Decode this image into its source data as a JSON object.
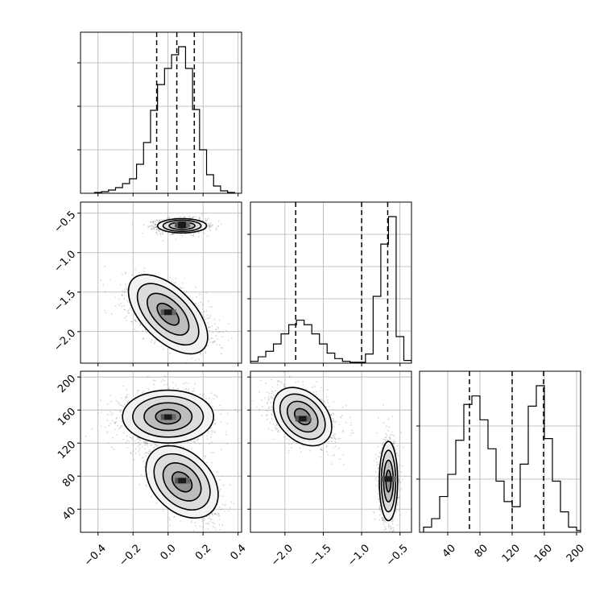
{
  "chart_data": [
    {
      "name": "hist-p0",
      "type": "histogram",
      "param_index": 0,
      "xlim": [
        -0.5,
        0.42
      ],
      "grid": true,
      "quantiles": [
        -0.065,
        0.05,
        0.15
      ],
      "bins": [
        -0.4,
        -0.36,
        -0.32,
        -0.28,
        -0.24,
        -0.2,
        -0.16,
        -0.12,
        -0.08,
        -0.04,
        0.0,
        0.04,
        0.08,
        0.12,
        0.16,
        0.2,
        0.24,
        0.28,
        0.32,
        0.36
      ],
      "counts": [
        1,
        2,
        4,
        7,
        12,
        18,
        36,
        63,
        103,
        135,
        155,
        172,
        182,
        155,
        104,
        54,
        23,
        9,
        3,
        1
      ],
      "y_ticks": [
        0.27,
        0.54,
        0.81
      ]
    },
    {
      "name": "hist-p1",
      "type": "histogram",
      "param_index": 1,
      "xlim": [
        -2.45,
        -0.35
      ],
      "grid": true,
      "quantiles": [
        -1.86,
        -1.0,
        -0.66
      ],
      "bins": [
        -2.4,
        -2.3,
        -2.2,
        -2.1,
        -2.0,
        -1.9,
        -1.8,
        -1.7,
        -1.6,
        -1.5,
        -1.4,
        -1.3,
        -1.2,
        -1.1,
        -1.0,
        -0.9,
        -0.8,
        -0.7,
        -0.6,
        -0.5,
        -0.4
      ],
      "counts": [
        2,
        7,
        13,
        21,
        32,
        42,
        47,
        42,
        32,
        21,
        11,
        5,
        2,
        1,
        1,
        10,
        73,
        130,
        160,
        29,
        3
      ],
      "y_ticks": [
        0.2,
        0.4,
        0.6,
        0.8
      ]
    },
    {
      "name": "hist-p2",
      "type": "histogram",
      "param_index": 2,
      "xlim": [
        5,
        205
      ],
      "grid": true,
      "quantiles": [
        67,
        120,
        159
      ],
      "bins": [
        15,
        25,
        35,
        45,
        55,
        65,
        75,
        85,
        95,
        105,
        115,
        125,
        135,
        145,
        155,
        165,
        175,
        185,
        195,
        205
      ],
      "counts": [
        3,
        8,
        21,
        34,
        54,
        75,
        80,
        66,
        49,
        30,
        18,
        15,
        40,
        74,
        86,
        55,
        30,
        12,
        3,
        1
      ],
      "y_ticks": [
        0.33,
        0.66
      ]
    },
    {
      "name": "scatter-p0-p1",
      "type": "scatter-contour",
      "x_param": 0,
      "y_param": 1,
      "xlim": [
        -0.5,
        0.42
      ],
      "ylim": [
        -2.4,
        -0.36
      ],
      "clusters": [
        {
          "mx": 0.08,
          "my": -0.66,
          "sx": 0.07,
          "sy": 0.045,
          "rho": 0.0,
          "n": 1500,
          "peak": [
            0.08,
            -0.64
          ]
        },
        {
          "mx": 0.0,
          "my": -1.78,
          "sx": 0.12,
          "sy": 0.2,
          "rho": -0.55,
          "n": 1500,
          "peak": [
            0.0,
            -1.75
          ]
        }
      ]
    },
    {
      "name": "scatter-p0-p2",
      "type": "scatter-contour",
      "x_param": 0,
      "y_param": 2,
      "xlim": [
        -0.5,
        0.42
      ],
      "ylim": [
        12,
        207
      ],
      "clusters": [
        {
          "mx": 0.0,
          "my": 152,
          "sx": 0.13,
          "sy": 16,
          "rho": 0.0,
          "n": 1500,
          "peak": [
            0.0,
            152
          ]
        },
        {
          "mx": 0.08,
          "my": 73,
          "sx": 0.1,
          "sy": 22,
          "rho": -0.6,
          "n": 1500,
          "peak": [
            0.08,
            75
          ]
        }
      ]
    },
    {
      "name": "scatter-p1-p2",
      "type": "scatter-contour",
      "x_param": 1,
      "y_param": 2,
      "xlim": [
        -2.45,
        -0.35
      ],
      "ylim": [
        12,
        207
      ],
      "clusters": [
        {
          "mx": -1.77,
          "my": 152,
          "sx": 0.2,
          "sy": 16,
          "rho": -0.35,
          "n": 1500,
          "peak": [
            -1.77,
            150
          ]
        },
        {
          "mx": -0.65,
          "my": 74,
          "sx": 0.06,
          "sy": 24,
          "rho": 0.0,
          "n": 1500,
          "peak": [
            -0.65,
            77
          ]
        }
      ]
    }
  ],
  "axes": {
    "p0": {
      "ticks": [
        -0.4,
        -0.2,
        0.0,
        0.2,
        0.4
      ],
      "labels": [
        "−0.4",
        "−0.2",
        "0.0",
        "0.2",
        "0.4"
      ]
    },
    "p1": {
      "ticks": [
        -2.0,
        -1.5,
        -1.0,
        -0.5
      ],
      "labels": [
        "−2.0",
        "−1.5",
        "−1.0",
        "−0.5"
      ]
    },
    "p2": {
      "ticks": [
        40,
        80,
        120,
        160,
        200
      ],
      "labels": [
        "40",
        "80",
        "120",
        "160",
        "200"
      ]
    }
  },
  "colors": {
    "line": "#000000",
    "grid": "#b0b0b0",
    "point": "#8a8a8a"
  }
}
